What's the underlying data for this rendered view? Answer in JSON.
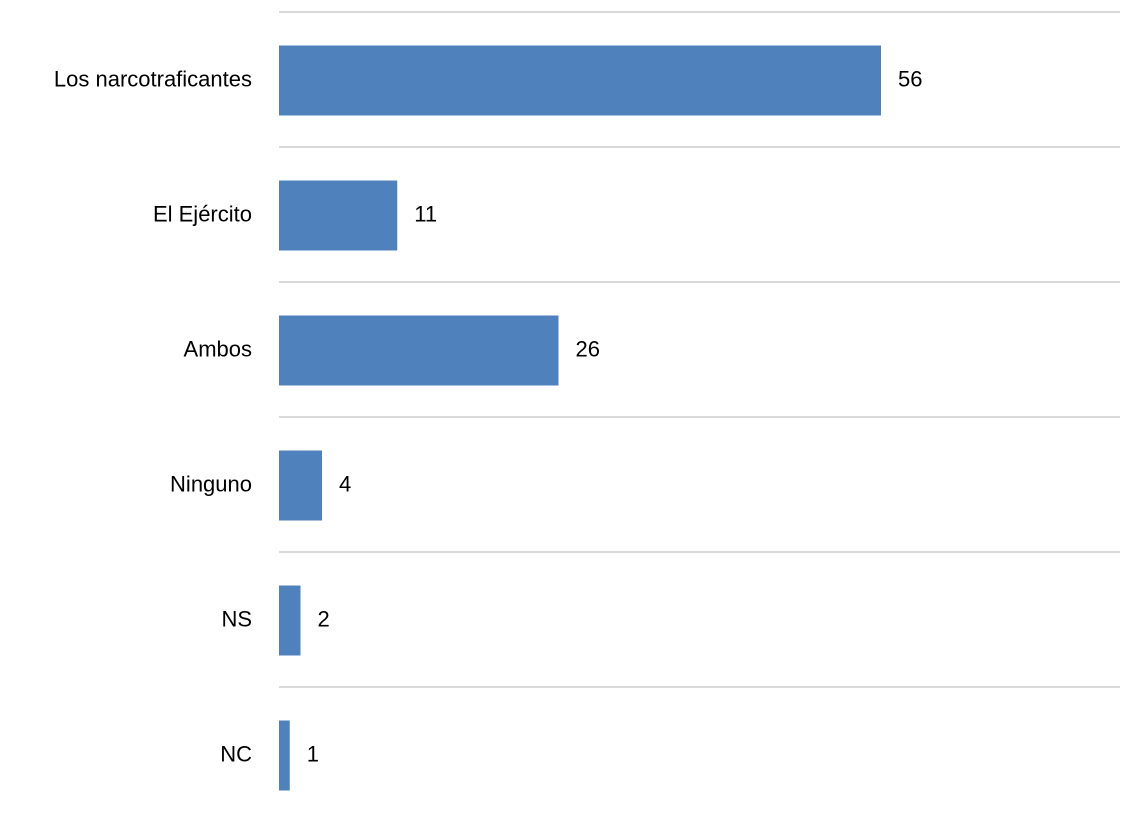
{
  "chart_data": {
    "type": "bar",
    "orientation": "horizontal",
    "title": "",
    "xlabel": "",
    "ylabel": "",
    "categories": [
      "Los narcotraficantes",
      "El Ejército",
      "Ambos",
      "Ninguno",
      "NS",
      "NC"
    ],
    "values": [
      56,
      11,
      26,
      4,
      2,
      1
    ],
    "data_labels": [
      "56",
      "11",
      "26",
      "4",
      "2",
      "1"
    ],
    "xlim": [
      0,
      100
    ],
    "grid": true,
    "legend": "none",
    "colors": {
      "bar": "#4F81BD",
      "grid": "#D9D9D9",
      "text": "#000000"
    }
  }
}
